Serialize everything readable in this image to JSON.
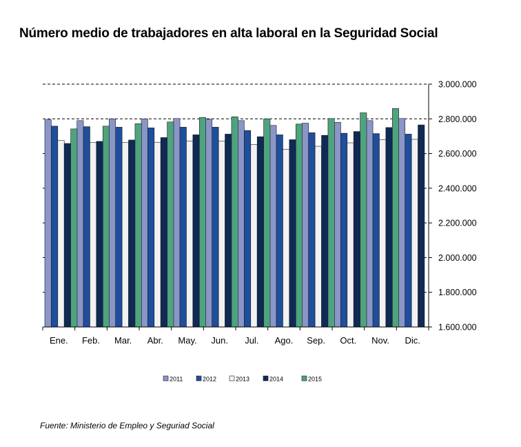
{
  "title": "Número medio de trabajadores en alta laboral en la Seguridad Social",
  "source": "Fuente: Ministerio de Empleo y Seguriad Social",
  "chart_data": {
    "type": "bar",
    "categories": [
      "Ene.",
      "Feb.",
      "Mar.",
      "Abr.",
      "May.",
      "Jun.",
      "Jul.",
      "Ago.",
      "Sep.",
      "Oct.",
      "Nov.",
      "Dic."
    ],
    "ylim": [
      1600000,
      3000000
    ],
    "yticks": [
      1600000,
      1800000,
      2000000,
      2200000,
      2400000,
      2600000,
      2800000,
      3000000
    ],
    "ytick_labels": [
      "1.600.000",
      "1.800.000",
      "2.000.000",
      "2.200.000",
      "2.400.000",
      "2.600.000",
      "2.800.000",
      "3.000.000"
    ],
    "yaxis_position": "right",
    "grid": "dashed-major-lines",
    "legend_position": "bottom",
    "series": [
      {
        "name": "2011",
        "color": "#8a95c8",
        "values": [
          2795000,
          2790000,
          2800000,
          2800000,
          2802000,
          2798000,
          2790000,
          2762000,
          2775000,
          2780000,
          2790000,
          2802000
        ]
      },
      {
        "name": "2012",
        "color": "#1f4e9c",
        "values": [
          2758000,
          2755000,
          2752000,
          2748000,
          2752000,
          2752000,
          2733000,
          2708000,
          2720000,
          2717000,
          2715000,
          2712000
        ]
      },
      {
        "name": "2013",
        "color": "#f2f2f2",
        "values": [
          2675000,
          2663000,
          2663000,
          2665000,
          2672000,
          2672000,
          2652000,
          2625000,
          2642000,
          2662000,
          2680000,
          2682000
        ]
      },
      {
        "name": "2014",
        "color": "#0f2a55",
        "values": [
          2658000,
          2670000,
          2678000,
          2692000,
          2708000,
          2712000,
          2697000,
          2680000,
          2705000,
          2727000,
          2750000,
          2765000
        ]
      },
      {
        "name": "2015",
        "color": "#4fa37f",
        "values": [
          2742000,
          2758000,
          2772000,
          2782000,
          2808000,
          2812000,
          2800000,
          2770000,
          2802000,
          2835000,
          2860000,
          null
        ]
      }
    ]
  }
}
